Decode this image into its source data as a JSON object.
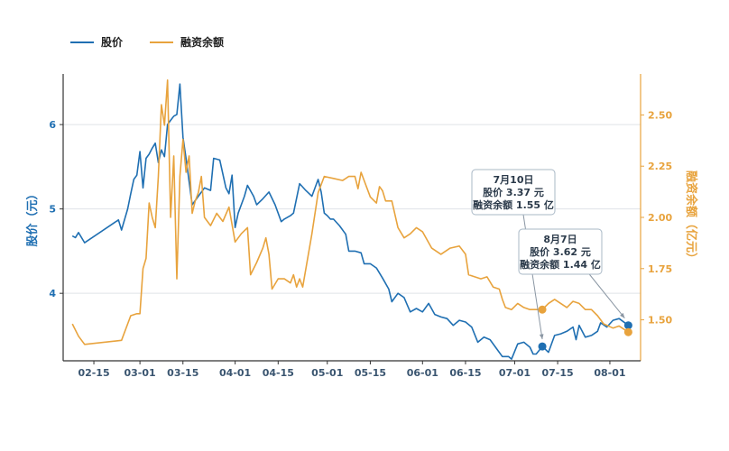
{
  "legend": {
    "price_label": "股价",
    "margin_label": "融资余额"
  },
  "colors": {
    "price": "#1f6fb2",
    "margin": "#e8a33d",
    "grid": "#dfe3e8",
    "axis": "#333333",
    "annotation_border": "#a9b8c6"
  },
  "chart_data": {
    "type": "line",
    "title": "",
    "xlabel": "",
    "ylabel_left": "股价（元）",
    "ylabel_right": "融资余额（亿元）",
    "x_ticks": [
      "02-15",
      "03-01",
      "03-15",
      "04-01",
      "04-15",
      "05-01",
      "05-15",
      "06-01",
      "06-15",
      "07-01",
      "07-15",
      "08-01"
    ],
    "y_left_ticks": [
      "4",
      "5",
      "6"
    ],
    "y_right_ticks": [
      "1.50",
      "1.75",
      "2.00",
      "2.25",
      "2.50"
    ],
    "y_left_range": [
      3.2,
      6.6
    ],
    "y_right_range": [
      1.3,
      2.7
    ],
    "grid": "horizontal",
    "legend_position": "top-left",
    "series": [
      {
        "name": "股价",
        "axis": "left",
        "points": [
          [
            "2024-02-08",
            4.68
          ],
          [
            "2024-02-09",
            4.66
          ],
          [
            "2024-02-10",
            4.72
          ],
          [
            "2024-02-12",
            4.6
          ],
          [
            "2024-02-23",
            4.87
          ],
          [
            "2024-02-24",
            4.75
          ],
          [
            "2024-02-26",
            5.0
          ],
          [
            "2024-02-27",
            5.18
          ],
          [
            "2024-02-28",
            5.35
          ],
          [
            "2024-02-29",
            5.4
          ],
          [
            "2024-03-01",
            5.68
          ],
          [
            "2024-03-02",
            5.25
          ],
          [
            "2024-03-03",
            5.6
          ],
          [
            "2024-03-04",
            5.65
          ],
          [
            "2024-03-05",
            5.72
          ],
          [
            "2024-03-06",
            5.78
          ],
          [
            "2024-03-07",
            5.55
          ],
          [
            "2024-03-08",
            5.7
          ],
          [
            "2024-03-09",
            5.62
          ],
          [
            "2024-03-10",
            6.0
          ],
          [
            "2024-03-11",
            6.05
          ],
          [
            "2024-03-12",
            6.1
          ],
          [
            "2024-03-13",
            6.12
          ],
          [
            "2024-03-14",
            6.48
          ],
          [
            "2024-03-15",
            5.85
          ],
          [
            "2024-03-16",
            5.6
          ],
          [
            "2024-03-18",
            5.05
          ],
          [
            "2024-03-20",
            5.15
          ],
          [
            "2024-03-22",
            5.25
          ],
          [
            "2024-03-24",
            5.22
          ],
          [
            "2024-03-25",
            5.6
          ],
          [
            "2024-03-27",
            5.58
          ],
          [
            "2024-03-29",
            5.25
          ],
          [
            "2024-03-30",
            5.18
          ],
          [
            "2024-03-31",
            5.4
          ],
          [
            "2024-04-01",
            4.78
          ],
          [
            "2024-04-02",
            4.95
          ],
          [
            "2024-04-04",
            5.15
          ],
          [
            "2024-04-05",
            5.28
          ],
          [
            "2024-04-07",
            5.15
          ],
          [
            "2024-04-08",
            5.05
          ],
          [
            "2024-04-10",
            5.12
          ],
          [
            "2024-04-12",
            5.2
          ],
          [
            "2024-04-14",
            5.05
          ],
          [
            "2024-04-16",
            4.85
          ],
          [
            "2024-04-17",
            4.88
          ],
          [
            "2024-04-19",
            4.92
          ],
          [
            "2024-04-20",
            4.95
          ],
          [
            "2024-04-22",
            5.3
          ],
          [
            "2024-04-24",
            5.22
          ],
          [
            "2024-04-26",
            5.15
          ],
          [
            "2024-04-28",
            5.35
          ],
          [
            "2024-04-29",
            5.2
          ],
          [
            "2024-04-30",
            4.95
          ],
          [
            "2024-05-01",
            4.92
          ],
          [
            "2024-05-02",
            4.88
          ],
          [
            "2024-05-03",
            4.88
          ],
          [
            "2024-05-05",
            4.8
          ],
          [
            "2024-05-07",
            4.7
          ],
          [
            "2024-05-08",
            4.5
          ],
          [
            "2024-05-10",
            4.5
          ],
          [
            "2024-05-12",
            4.48
          ],
          [
            "2024-05-13",
            4.35
          ],
          [
            "2024-05-15",
            4.35
          ],
          [
            "2024-05-17",
            4.3
          ],
          [
            "2024-05-19",
            4.18
          ],
          [
            "2024-05-21",
            4.05
          ],
          [
            "2024-05-22",
            3.9
          ],
          [
            "2024-05-24",
            4.0
          ],
          [
            "2024-05-26",
            3.95
          ],
          [
            "2024-05-28",
            3.78
          ],
          [
            "2024-05-30",
            3.82
          ],
          [
            "2024-06-01",
            3.78
          ],
          [
            "2024-06-03",
            3.88
          ],
          [
            "2024-06-05",
            3.75
          ],
          [
            "2024-06-07",
            3.72
          ],
          [
            "2024-06-09",
            3.7
          ],
          [
            "2024-06-11",
            3.62
          ],
          [
            "2024-06-13",
            3.68
          ],
          [
            "2024-06-15",
            3.66
          ],
          [
            "2024-06-17",
            3.6
          ],
          [
            "2024-06-19",
            3.42
          ],
          [
            "2024-06-21",
            3.48
          ],
          [
            "2024-06-23",
            3.45
          ],
          [
            "2024-06-25",
            3.35
          ],
          [
            "2024-06-27",
            3.25
          ],
          [
            "2024-06-29",
            3.25
          ],
          [
            "2024-06-30",
            3.22
          ],
          [
            "2024-07-02",
            3.4
          ],
          [
            "2024-07-04",
            3.42
          ],
          [
            "2024-07-06",
            3.36
          ],
          [
            "2024-07-07",
            3.28
          ],
          [
            "2024-07-08",
            3.28
          ],
          [
            "2024-07-10",
            3.37
          ],
          [
            "2024-07-12",
            3.3
          ],
          [
            "2024-07-14",
            3.5
          ],
          [
            "2024-07-16",
            3.52
          ],
          [
            "2024-07-18",
            3.55
          ],
          [
            "2024-07-20",
            3.6
          ],
          [
            "2024-07-21",
            3.45
          ],
          [
            "2024-07-22",
            3.62
          ],
          [
            "2024-07-24",
            3.48
          ],
          [
            "2024-07-26",
            3.5
          ],
          [
            "2024-07-28",
            3.55
          ],
          [
            "2024-07-29",
            3.65
          ],
          [
            "2024-07-31",
            3.6
          ],
          [
            "2024-08-02",
            3.68
          ],
          [
            "2024-08-04",
            3.7
          ],
          [
            "2024-08-07",
            3.62
          ]
        ]
      },
      {
        "name": "融资余额",
        "axis": "right",
        "points": [
          [
            "2024-02-08",
            1.48
          ],
          [
            "2024-02-10",
            1.42
          ],
          [
            "2024-02-12",
            1.38
          ],
          [
            "2024-02-24",
            1.4
          ],
          [
            "2024-02-26",
            1.48
          ],
          [
            "2024-02-27",
            1.52
          ],
          [
            "2024-02-29",
            1.53
          ],
          [
            "2024-03-01",
            1.53
          ],
          [
            "2024-03-02",
            1.75
          ],
          [
            "2024-03-03",
            1.8
          ],
          [
            "2024-03-04",
            2.07
          ],
          [
            "2024-03-05",
            2.0
          ],
          [
            "2024-03-06",
            1.95
          ],
          [
            "2024-03-07",
            2.2
          ],
          [
            "2024-03-08",
            2.55
          ],
          [
            "2024-03-09",
            2.45
          ],
          [
            "2024-03-10",
            2.67
          ],
          [
            "2024-03-11",
            2.0
          ],
          [
            "2024-03-12",
            2.3
          ],
          [
            "2024-03-13",
            1.7
          ],
          [
            "2024-03-14",
            2.2
          ],
          [
            "2024-03-15",
            2.38
          ],
          [
            "2024-03-16",
            2.22
          ],
          [
            "2024-03-17",
            2.3
          ],
          [
            "2024-03-18",
            2.02
          ],
          [
            "2024-03-19",
            2.08
          ],
          [
            "2024-03-20",
            2.12
          ],
          [
            "2024-03-21",
            2.2
          ],
          [
            "2024-03-22",
            2.0
          ],
          [
            "2024-03-24",
            1.96
          ],
          [
            "2024-03-26",
            2.02
          ],
          [
            "2024-03-28",
            1.98
          ],
          [
            "2024-03-30",
            2.05
          ],
          [
            "2024-04-01",
            1.88
          ],
          [
            "2024-04-03",
            1.92
          ],
          [
            "2024-04-05",
            1.95
          ],
          [
            "2024-04-06",
            1.72
          ],
          [
            "2024-04-08",
            1.78
          ],
          [
            "2024-04-10",
            1.85
          ],
          [
            "2024-04-11",
            1.9
          ],
          [
            "2024-04-12",
            1.82
          ],
          [
            "2024-04-13",
            1.65
          ],
          [
            "2024-04-15",
            1.7
          ],
          [
            "2024-04-17",
            1.7
          ],
          [
            "2024-04-19",
            1.68
          ],
          [
            "2024-04-20",
            1.72
          ],
          [
            "2024-04-21",
            1.66
          ],
          [
            "2024-04-22",
            1.7
          ],
          [
            "2024-04-23",
            1.66
          ],
          [
            "2024-04-26",
            1.92
          ],
          [
            "2024-04-28",
            2.12
          ],
          [
            "2024-04-30",
            2.2
          ],
          [
            "2024-05-03",
            2.19
          ],
          [
            "2024-05-06",
            2.18
          ],
          [
            "2024-05-08",
            2.2
          ],
          [
            "2024-05-10",
            2.2
          ],
          [
            "2024-05-11",
            2.14
          ],
          [
            "2024-05-12",
            2.22
          ],
          [
            "2024-05-13",
            2.18
          ],
          [
            "2024-05-15",
            2.1
          ],
          [
            "2024-05-17",
            2.07
          ],
          [
            "2024-05-18",
            2.15
          ],
          [
            "2024-05-19",
            2.13
          ],
          [
            "2024-05-20",
            2.08
          ],
          [
            "2024-05-22",
            2.08
          ],
          [
            "2024-05-24",
            1.95
          ],
          [
            "2024-05-26",
            1.9
          ],
          [
            "2024-05-28",
            1.92
          ],
          [
            "2024-05-30",
            1.95
          ],
          [
            "2024-06-01",
            1.93
          ],
          [
            "2024-06-04",
            1.85
          ],
          [
            "2024-06-07",
            1.82
          ],
          [
            "2024-06-10",
            1.85
          ],
          [
            "2024-06-13",
            1.86
          ],
          [
            "2024-06-15",
            1.82
          ],
          [
            "2024-06-16",
            1.72
          ],
          [
            "2024-06-18",
            1.71
          ],
          [
            "2024-06-20",
            1.7
          ],
          [
            "2024-06-22",
            1.71
          ],
          [
            "2024-06-24",
            1.66
          ],
          [
            "2024-06-26",
            1.65
          ],
          [
            "2024-06-27",
            1.6
          ],
          [
            "2024-06-28",
            1.56
          ],
          [
            "2024-06-30",
            1.55
          ],
          [
            "2024-07-02",
            1.58
          ],
          [
            "2024-07-04",
            1.56
          ],
          [
            "2024-07-06",
            1.55
          ],
          [
            "2024-07-10",
            1.55
          ],
          [
            "2024-07-12",
            1.58
          ],
          [
            "2024-07-14",
            1.6
          ],
          [
            "2024-07-16",
            1.58
          ],
          [
            "2024-07-18",
            1.56
          ],
          [
            "2024-07-20",
            1.59
          ],
          [
            "2024-07-22",
            1.58
          ],
          [
            "2024-07-24",
            1.55
          ],
          [
            "2024-07-26",
            1.55
          ],
          [
            "2024-07-28",
            1.52
          ],
          [
            "2024-07-30",
            1.48
          ],
          [
            "2024-08-02",
            1.46
          ],
          [
            "2024-08-04",
            1.47
          ],
          [
            "2024-08-07",
            1.44
          ]
        ]
      }
    ],
    "annotations": [
      {
        "date": "2024-07-10",
        "lines": [
          "7月10日",
          "股价 3.37 元",
          "融资余额 1.55 亿"
        ],
        "price": 3.37,
        "margin": 1.55
      },
      {
        "date": "2024-08-07",
        "lines": [
          "8月7日",
          "股价 3.62 元",
          "融资余额 1.44 亿"
        ],
        "price": 3.62,
        "margin": 1.44
      }
    ]
  }
}
